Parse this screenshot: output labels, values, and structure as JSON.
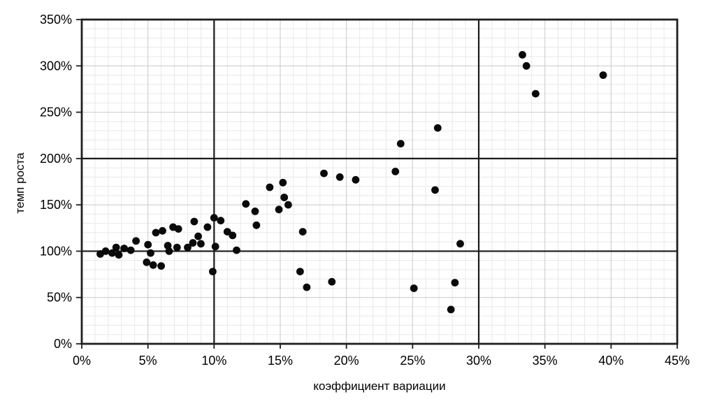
{
  "chart_data": {
    "type": "scatter",
    "title": "",
    "xlabel": "коэффициент вариации",
    "ylabel": "темп роста",
    "xlim": [
      0,
      45
    ],
    "ylim": [
      0,
      350
    ],
    "x_tick_labels": [
      "0%",
      "5%",
      "10%",
      "15%",
      "20%",
      "25%",
      "30%",
      "35%",
      "40%",
      "45%"
    ],
    "y_tick_labels": [
      "0%",
      "50%",
      "100%",
      "150%",
      "200%",
      "250%",
      "300%",
      "350%"
    ],
    "x_major_step": 5,
    "y_major_step": 50,
    "x_minor_step": 1,
    "y_minor_step": 10,
    "grid": "minor-and-major",
    "legend": "none",
    "reference_lines": {
      "vertical_x": [
        10,
        30
      ],
      "horizontal_y": [
        100,
        200
      ]
    },
    "points_unit": "percent",
    "points": [
      [
        1.4,
        97
      ],
      [
        1.8,
        100
      ],
      [
        2.3,
        98
      ],
      [
        2.6,
        104
      ],
      [
        2.8,
        96
      ],
      [
        3.2,
        103
      ],
      [
        3.7,
        101
      ],
      [
        4.1,
        111
      ],
      [
        5.0,
        107
      ],
      [
        5.2,
        98
      ],
      [
        4.9,
        88
      ],
      [
        5.4,
        85
      ],
      [
        6.0,
        84
      ],
      [
        5.6,
        120
      ],
      [
        6.1,
        122
      ],
      [
        6.9,
        126
      ],
      [
        7.3,
        124
      ],
      [
        6.5,
        106
      ],
      [
        6.6,
        100
      ],
      [
        7.2,
        104
      ],
      [
        8.0,
        104
      ],
      [
        8.5,
        132
      ],
      [
        9.5,
        126
      ],
      [
        10.0,
        136
      ],
      [
        10.5,
        133
      ],
      [
        8.8,
        116
      ],
      [
        8.4,
        109
      ],
      [
        9.0,
        108
      ],
      [
        10.1,
        105
      ],
      [
        9.9,
        78
      ],
      [
        11.0,
        121
      ],
      [
        11.4,
        117
      ],
      [
        11.7,
        101
      ],
      [
        12.4,
        151
      ],
      [
        13.1,
        143
      ],
      [
        13.2,
        128
      ],
      [
        14.2,
        169
      ],
      [
        15.2,
        174
      ],
      [
        15.3,
        158
      ],
      [
        15.6,
        150
      ],
      [
        14.9,
        145
      ],
      [
        16.7,
        121
      ],
      [
        16.5,
        78
      ],
      [
        17.0,
        61
      ],
      [
        18.3,
        184
      ],
      [
        19.5,
        180
      ],
      [
        20.7,
        177
      ],
      [
        18.9,
        67
      ],
      [
        23.7,
        186
      ],
      [
        24.1,
        216
      ],
      [
        25.1,
        60
      ],
      [
        26.9,
        233
      ],
      [
        26.7,
        166
      ],
      [
        27.9,
        37
      ],
      [
        28.2,
        66
      ],
      [
        28.6,
        108
      ],
      [
        33.3,
        312
      ],
      [
        33.6,
        300
      ],
      [
        34.3,
        270
      ],
      [
        39.4,
        290
      ]
    ],
    "colors": {
      "point": "#0a0a0a",
      "reference_line": "#1a1a1a",
      "plot_border": "#1f1f1f",
      "minor_grid": "#e8e8e8",
      "major_grid": "#c9c9c9",
      "axis_tick": "#1f1f1f",
      "background": "#ffffff"
    }
  }
}
